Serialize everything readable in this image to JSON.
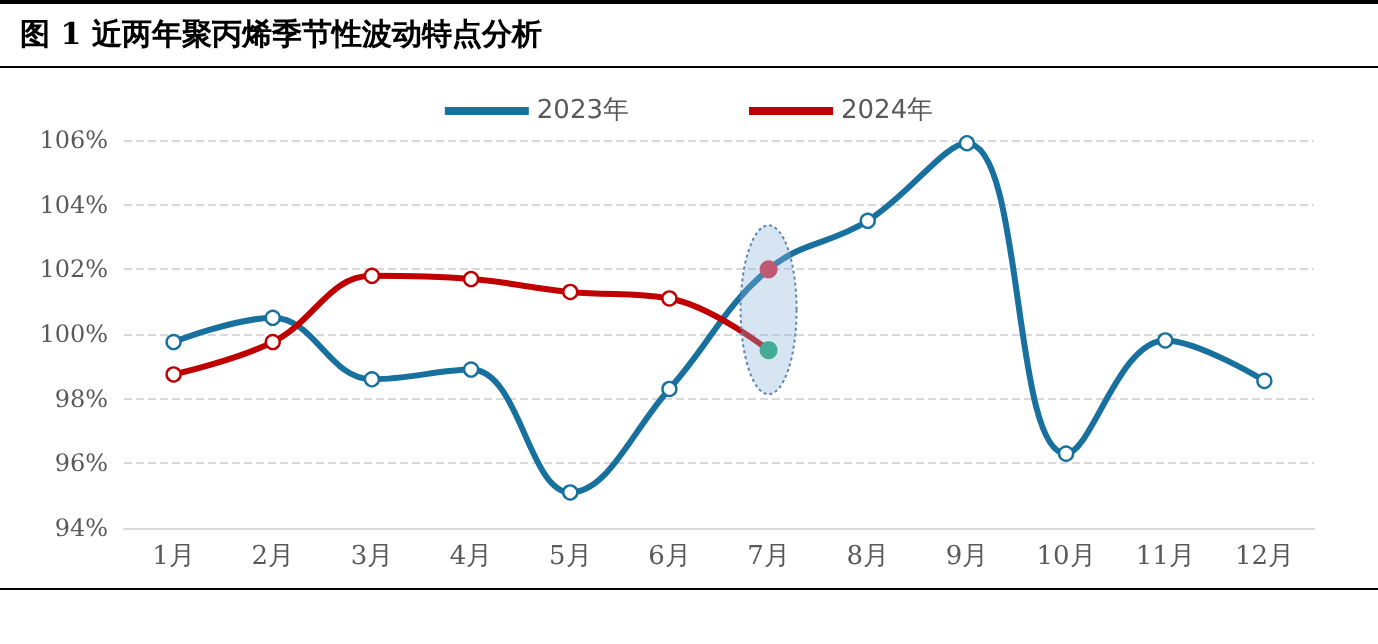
{
  "chart_data": {
    "type": "line",
    "title": "图 1  近两年聚丙烯季节性波动特点分析",
    "categories": [
      "1月",
      "2月",
      "3月",
      "4月",
      "5月",
      "6月",
      "7月",
      "8月",
      "9月",
      "10月",
      "11月",
      "12月"
    ],
    "series": [
      {
        "name": "2023年",
        "color": "#17709e",
        "values": [
          99.75,
          100.5,
          98.6,
          98.9,
          95.1,
          98.3,
          102.0,
          103.5,
          105.9,
          96.3,
          99.8,
          98.55
        ],
        "colors": [
          "#ffffff",
          "#ffffff",
          "#ffffff",
          "#ffffff",
          "#ffffff",
          "#ffffff",
          "#dc2a3a",
          "#ffffff",
          "#ffffff",
          "#ffffff",
          "#ffffff",
          "#ffffff"
        ]
      },
      {
        "name": "2024年",
        "color": "#c00000",
        "values": [
          98.75,
          99.75,
          101.8,
          101.7,
          101.3,
          101.1,
          99.5,
          null,
          null,
          null,
          null,
          null
        ],
        "colors": [
          "#ffffff",
          "#ffffff",
          "#ffffff",
          "#ffffff",
          "#ffffff",
          "#ffffff",
          "#1ea86e",
          "#ffffff",
          "#ffffff",
          "#ffffff",
          "#ffffff",
          "#ffffff"
        ]
      }
    ],
    "ylim": [
      94,
      106
    ],
    "yticks": [
      {
        "value": 94,
        "label": "94%"
      },
      {
        "value": 96,
        "label": "96%"
      },
      {
        "value": 98,
        "label": "98%"
      },
      {
        "value": 100,
        "label": "100%"
      },
      {
        "value": 102,
        "label": "102%"
      },
      {
        "value": 104,
        "label": "104%"
      },
      {
        "value": 106,
        "label": "106%"
      }
    ],
    "grid": "y",
    "legend": "top",
    "marker": "circle",
    "line_style": "solid"
  }
}
